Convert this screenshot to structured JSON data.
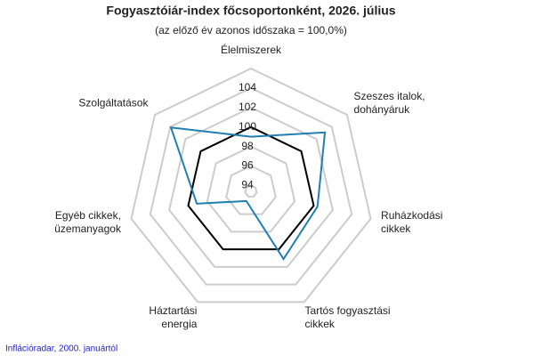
{
  "chart_data": {
    "type": "radar",
    "title": "Fogyasztóiár-index főcsoportonként, 2026. július",
    "subtitle": "(az előző év azonos időszaka = 100,0%)",
    "source": "Inflációradar, 2000. januártól",
    "categories": [
      [
        "Élelmiszerek"
      ],
      [
        "Szeszes italok,",
        "dohányáruk"
      ],
      [
        "Ruházkodási",
        "cikkek"
      ],
      [
        "Tartós fogyasztási",
        "cikkek"
      ],
      [
        "Háztartási",
        "energia"
      ],
      [
        "Egyéb cikkek,",
        "üzemanyagok"
      ],
      [
        "Szolgáltatások"
      ]
    ],
    "series": [
      {
        "color": "#000000",
        "values": [
          100,
          100,
          100,
          100,
          100,
          100,
          100
        ]
      },
      {
        "color": "#1f7fb0",
        "values": [
          99.0,
          103.1,
          100.4,
          101.1,
          94.5,
          99.1,
          103.9
        ]
      }
    ],
    "ylim": [
      93.4,
      106
    ],
    "yticks": [
      94,
      96,
      98,
      100,
      102,
      104
    ],
    "grid": true
  }
}
